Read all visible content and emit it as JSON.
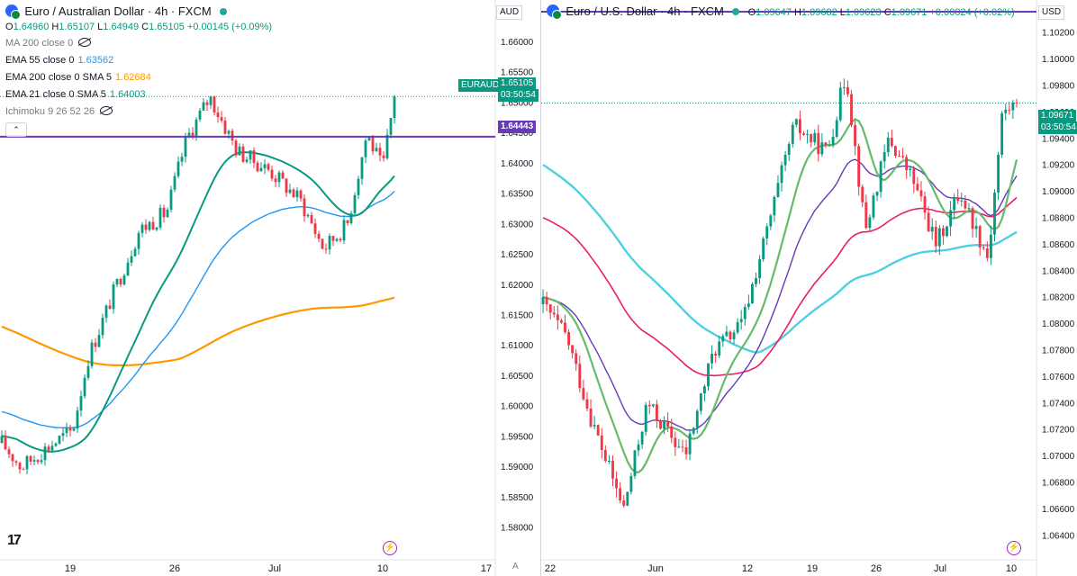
{
  "left": {
    "title": "Euro / Australian Dollar · 4h · FXCM",
    "ohlc": {
      "o": "O",
      "o_v": "1.64960",
      "h": "H",
      "h_v": "1.65107",
      "l": "L",
      "l_v": "1.64949",
      "c": "C",
      "c_v": "1.65105",
      "chg": "+0.00145 (+0.09%)"
    },
    "indicators": [
      {
        "label": "MA 200 close 0",
        "value": "",
        "color": "#787b86",
        "hidden": true
      },
      {
        "label": "EMA 55 close 0",
        "value": "1.63562",
        "color": "#2196f3"
      },
      {
        "label": "EMA 200 close 0 SMA 5",
        "value": "1.62684",
        "color": "#ff9800"
      },
      {
        "label": "EMA 21 close 0 SMA 5",
        "value": "1.64003",
        "color": "#089981"
      },
      {
        "label": "Ichimoku 9 26 52 26",
        "value": "",
        "color": "#787b86",
        "hidden": true
      }
    ],
    "currency": "AUD",
    "symbol_badge": "EURAUD",
    "price_badge": "1.65105",
    "countdown": "03:50:54",
    "hline_badge": "1.64443",
    "y_ticks": [
      "1.66000",
      "1.65500",
      "1.65000",
      "1.64500",
      "1.64000",
      "1.63500",
      "1.63000",
      "1.62500",
      "1.62000",
      "1.61500",
      "1.61000",
      "1.60500",
      "1.60000",
      "1.59500",
      "1.59000",
      "1.58500",
      "1.58000"
    ],
    "x_ticks": [
      "19",
      "26",
      "Jul",
      "10",
      "17"
    ],
    "axis_a": "A",
    "colors": {
      "up": "#089981",
      "down": "#f23645",
      "ema55": "#2196f3",
      "ema200": "#ff9800",
      "ema21": "#089981",
      "hline": "#673ab7"
    }
  },
  "right": {
    "title": "Euro / U.S. Dollar · 4h · FXCM",
    "ohlc": {
      "o": "O",
      "o_v": "1.09647",
      "h": "H",
      "h_v": "1.09682",
      "l": "L",
      "l_v": "1.09623",
      "c": "C",
      "c_v": "1.09671",
      "chg": "+0.00024 (+0.02%)"
    },
    "currency": "USD",
    "price_badge": "1.09671",
    "countdown": "03:50:54",
    "y_ticks": [
      "1.10200",
      "1.10000",
      "1.09800",
      "1.09600",
      "1.09400",
      "1.09200",
      "1.09000",
      "1.08800",
      "1.08600",
      "1.08400",
      "1.08200",
      "1.08000",
      "1.07800",
      "1.07600",
      "1.07400",
      "1.07200",
      "1.07000",
      "1.06800",
      "1.06600",
      "1.06400"
    ],
    "x_ticks": [
      "22",
      "Jun",
      "12",
      "19",
      "26",
      "Jul",
      "10"
    ],
    "colors": {
      "up": "#089981",
      "down": "#f23645",
      "ma_cyan": "#4dd0e1",
      "ma_red": "#e91e63",
      "ma_purple": "#673ab7",
      "ma_green": "#66bb6a",
      "hline": "#673ab7"
    }
  },
  "chart_data": [
    {
      "type": "candlestick",
      "title": "Euro / Australian Dollar · 4h · FXCM",
      "ylim": [
        1.5775,
        1.6625
      ],
      "x_ticks": [
        "19",
        "26",
        "Jul",
        "10",
        "17"
      ],
      "horizontal_line": 1.64443,
      "last_close": 1.65105,
      "series": [
        {
          "name": "EMA 55 close 0",
          "last": 1.63562
        },
        {
          "name": "EMA 200 close 0 SMA 5",
          "last": 1.62684
        },
        {
          "name": "EMA 21 close 0 SMA 5",
          "last": 1.64003
        }
      ],
      "path_keypoints": [
        {
          "t": 0,
          "p": 1.594
        },
        {
          "t": 0.05,
          "p": 1.59
        },
        {
          "t": 0.12,
          "p": 1.5935
        },
        {
          "t": 0.18,
          "p": 1.596
        },
        {
          "t": 0.22,
          "p": 1.608
        },
        {
          "t": 0.28,
          "p": 1.618
        },
        {
          "t": 0.35,
          "p": 1.629
        },
        {
          "t": 0.42,
          "p": 1.632
        },
        {
          "t": 0.47,
          "p": 1.644
        },
        {
          "t": 0.53,
          "p": 1.651
        },
        {
          "t": 0.6,
          "p": 1.642
        },
        {
          "t": 0.68,
          "p": 1.639
        },
        {
          "t": 0.76,
          "p": 1.634
        },
        {
          "t": 0.82,
          "p": 1.626
        },
        {
          "t": 0.88,
          "p": 1.63
        },
        {
          "t": 0.93,
          "p": 1.645
        },
        {
          "t": 0.97,
          "p": 1.639
        },
        {
          "t": 1.0,
          "p": 1.651
        }
      ]
    },
    {
      "type": "candlestick",
      "title": "Euro / U.S. Dollar · 4h · FXCM",
      "ylim": [
        1.063,
        1.103
      ],
      "x_ticks": [
        "22",
        "Jun",
        "12",
        "19",
        "26",
        "Jul",
        "10"
      ],
      "last_close": 1.09671,
      "path_keypoints": [
        {
          "t": 0,
          "p": 1.0815
        },
        {
          "t": 0.05,
          "p": 1.079
        },
        {
          "t": 0.1,
          "p": 1.073
        },
        {
          "t": 0.17,
          "p": 1.066
        },
        {
          "t": 0.22,
          "p": 1.074
        },
        {
          "t": 0.3,
          "p": 1.07
        },
        {
          "t": 0.36,
          "p": 1.078
        },
        {
          "t": 0.42,
          "p": 1.08
        },
        {
          "t": 0.48,
          "p": 1.088
        },
        {
          "t": 0.53,
          "p": 1.095
        },
        {
          "t": 0.6,
          "p": 1.093
        },
        {
          "t": 0.64,
          "p": 1.099
        },
        {
          "t": 0.68,
          "p": 1.087
        },
        {
          "t": 0.73,
          "p": 1.094
        },
        {
          "t": 0.78,
          "p": 1.091
        },
        {
          "t": 0.83,
          "p": 1.086
        },
        {
          "t": 0.88,
          "p": 1.09
        },
        {
          "t": 0.94,
          "p": 1.085
        },
        {
          "t": 0.97,
          "p": 1.096
        },
        {
          "t": 1.0,
          "p": 1.0967
        }
      ]
    }
  ]
}
